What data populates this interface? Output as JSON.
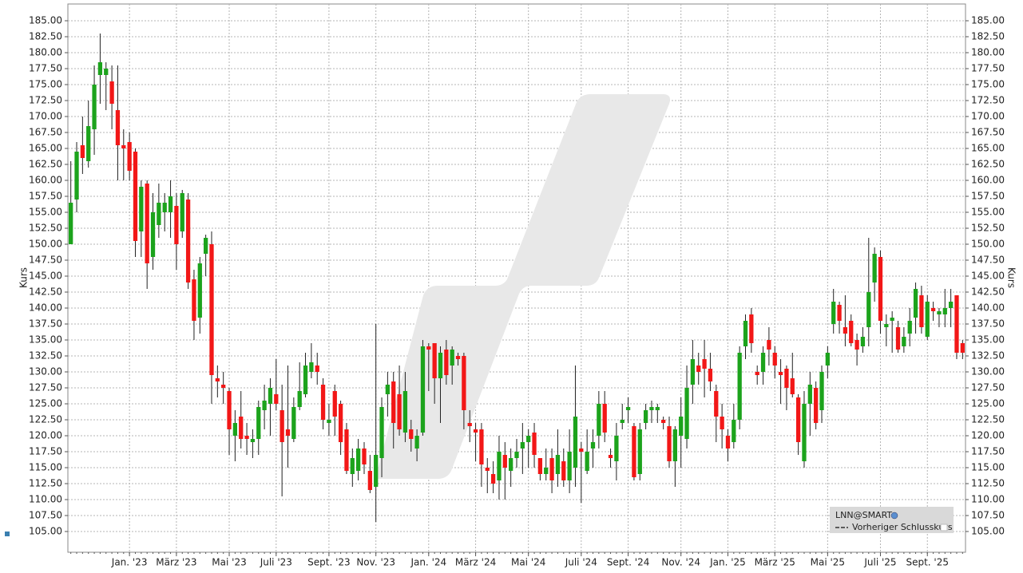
{
  "chart_data": {
    "type": "candlestick",
    "y_label": "Kurs",
    "legend": {
      "title": "LNN@SMART",
      "items": [
        "Vorheriger Schlusskurs"
      ]
    },
    "up_color": "#1ca31c",
    "down_color": "#f21717",
    "grid": true,
    "ylim": [
      101.75,
      187.625
    ],
    "yticks": [
      {
        "value": 105,
        "label": "105.00"
      },
      {
        "value": 107.5,
        "label": "107.50"
      },
      {
        "value": 110,
        "label": "110.00"
      },
      {
        "value": 112.5,
        "label": "112.50"
      },
      {
        "value": 115,
        "label": "115.00"
      },
      {
        "value": 117.5,
        "label": "117.50"
      },
      {
        "value": 120,
        "label": "120.00"
      },
      {
        "value": 122.5,
        "label": "122.50"
      },
      {
        "value": 125,
        "label": "125.00"
      },
      {
        "value": 127.5,
        "label": "127.50"
      },
      {
        "value": 130,
        "label": "130.00"
      },
      {
        "value": 132.5,
        "label": "132.50"
      },
      {
        "value": 135,
        "label": "135.00"
      },
      {
        "value": 137.5,
        "label": "137.50"
      },
      {
        "value": 140,
        "label": "140.00"
      },
      {
        "value": 142.5,
        "label": "142.50"
      },
      {
        "value": 145,
        "label": "145.00"
      },
      {
        "value": 147.5,
        "label": "147.50"
      },
      {
        "value": 150,
        "label": "150.00"
      },
      {
        "value": 152.5,
        "label": "152.50"
      },
      {
        "value": 155,
        "label": "155.00"
      },
      {
        "value": 157.5,
        "label": "157.50"
      },
      {
        "value": 160,
        "label": "160.00"
      },
      {
        "value": 162.5,
        "label": "162.50"
      },
      {
        "value": 165,
        "label": "165.00"
      },
      {
        "value": 167.5,
        "label": "167.50"
      },
      {
        "value": 170,
        "label": "170.00"
      },
      {
        "value": 172.5,
        "label": "172.50"
      },
      {
        "value": 175,
        "label": "175.00"
      },
      {
        "value": 177.5,
        "label": "177.50"
      },
      {
        "value": 180,
        "label": "180.00"
      },
      {
        "value": 182.5,
        "label": "182.50"
      },
      {
        "value": 185,
        "label": "185.00"
      }
    ],
    "categories": [
      null,
      null,
      null,
      null,
      null,
      null,
      null,
      null,
      null,
      null,
      "Jan. '23",
      null,
      null,
      null,
      null,
      null,
      null,
      null,
      "März '23",
      null,
      null,
      null,
      null,
      null,
      null,
      null,
      null,
      "Mai '23",
      null,
      null,
      null,
      null,
      null,
      null,
      null,
      "Juli '23",
      null,
      null,
      null,
      null,
      null,
      null,
      null,
      null,
      "Sept. '23",
      null,
      null,
      null,
      null,
      null,
      null,
      null,
      "Nov. '23",
      null,
      null,
      null,
      null,
      null,
      null,
      null,
      null,
      "Jan. '24",
      null,
      null,
      null,
      null,
      null,
      null,
      null,
      "März '24",
      null,
      null,
      null,
      null,
      null,
      null,
      null,
      null,
      "Mai '24",
      null,
      null,
      null,
      null,
      null,
      null,
      null,
      null,
      "Juli '24",
      null,
      null,
      null,
      null,
      null,
      null,
      null,
      "Sept. '24",
      null,
      null,
      null,
      null,
      null,
      null,
      null,
      null,
      "Nov. '24",
      null,
      null,
      null,
      null,
      null,
      null,
      null,
      "Jan. '25",
      null,
      null,
      null,
      null,
      null,
      null,
      null,
      "März '25",
      null,
      null,
      null,
      null,
      null,
      null,
      null,
      null,
      "Mai '25",
      null,
      null,
      null,
      null,
      null,
      null,
      null,
      null,
      "Juli '25",
      null,
      null,
      null,
      null,
      null,
      null,
      null,
      "Sept. '25",
      null,
      null,
      null,
      null,
      null,
      null
    ],
    "open": [
      150,
      157,
      165.5,
      163,
      168,
      176.5,
      176.5,
      175.5,
      171,
      165.5,
      166,
      164.5,
      152,
      159.5,
      148,
      153,
      155,
      155,
      156,
      152,
      157,
      144.5,
      138.5,
      148.5,
      150,
      129,
      128,
      127,
      120,
      123,
      120,
      119,
      119.5,
      124,
      125,
      126.5,
      124,
      121,
      119.5,
      124.5,
      126.5,
      130,
      131,
      128,
      122,
      127,
      125,
      121,
      114,
      114.5,
      118,
      114.5,
      112,
      116.5,
      126.5,
      128.5,
      126.5,
      120.5,
      121,
      118,
      120.5,
      134,
      134.5,
      129,
      133.5,
      131,
      132.5,
      132.5,
      122,
      121,
      121,
      115,
      114,
      113,
      117,
      114.5,
      116.5,
      118,
      119,
      120.5,
      116.5,
      114,
      116.5,
      114,
      116,
      113,
      115,
      118,
      114.5,
      118,
      120,
      125,
      117,
      116,
      122,
      124,
      121.5,
      114,
      122,
      124,
      124,
      122.5,
      121.5,
      116,
      120,
      119.5,
      128,
      131,
      132,
      130.5,
      127,
      123,
      120,
      119,
      122.5,
      134,
      139,
      130,
      130,
      135,
      133,
      130,
      130.5,
      129,
      126,
      116,
      125,
      127.5,
      124,
      131,
      137.5,
      140.5,
      137,
      138,
      135,
      134,
      137,
      144,
      148,
      137,
      138,
      137,
      134,
      136,
      138.5,
      142,
      135.5,
      140,
      139,
      139,
      140,
      142,
      134.5
    ],
    "high": [
      163,
      166,
      170,
      172.5,
      178,
      183,
      178.5,
      178,
      178,
      168,
      167.5,
      165,
      160,
      160,
      158,
      159.5,
      158,
      160,
      158,
      158.5,
      158,
      146,
      148,
      151.5,
      152,
      131,
      130,
      127.5,
      124,
      127,
      122,
      121,
      125.5,
      128,
      129,
      132,
      128,
      131,
      126,
      131.5,
      133,
      134.5,
      133,
      129,
      125,
      128,
      125.5,
      122,
      118,
      119.5,
      119,
      117,
      137.5,
      126,
      130,
      130,
      131,
      130,
      122.5,
      121,
      135,
      134.5,
      134.5,
      134,
      135,
      134,
      133,
      133,
      124,
      122,
      122,
      116.5,
      116,
      120,
      119,
      118,
      119.5,
      122,
      121,
      122,
      116.5,
      118,
      118,
      121,
      118,
      121,
      131,
      119,
      121,
      121,
      127,
      127,
      118,
      122,
      125,
      126,
      122,
      122,
      125,
      125.5,
      125,
      123,
      123,
      121.5,
      126,
      131,
      135,
      133,
      135,
      133,
      128,
      125,
      121,
      125,
      134,
      139,
      140,
      131,
      134,
      137,
      134,
      132,
      131,
      133,
      126.5,
      127,
      130,
      128.5,
      131,
      134,
      143,
      141,
      142,
      139,
      136,
      137,
      151,
      149.5,
      149,
      139,
      139.5,
      138,
      137,
      140,
      144,
      143.5,
      142,
      141,
      140,
      143,
      143,
      142,
      135
    ],
    "low": [
      150,
      155,
      161,
      162,
      164,
      172,
      171,
      168,
      160,
      160,
      160,
      148,
      148,
      143,
      146,
      151,
      152,
      151,
      146,
      151,
      143,
      135,
      136,
      145,
      125,
      126,
      125,
      117,
      116,
      118,
      117,
      116.5,
      117,
      121,
      120,
      124,
      110.5,
      115,
      119,
      124,
      126,
      129,
      128,
      121,
      120,
      120,
      117,
      114,
      112,
      113,
      114,
      111,
      106.5,
      113.5,
      123,
      118,
      120,
      119,
      117.5,
      116,
      120,
      127,
      125,
      122,
      128,
      128,
      131,
      121,
      119,
      116,
      112,
      111,
      111,
      110,
      110,
      112,
      115,
      114,
      115,
      115,
      113,
      113,
      111,
      112,
      112,
      111,
      112,
      109.5,
      114,
      115,
      118,
      119,
      115,
      113,
      121,
      122,
      113,
      113,
      121,
      122,
      122,
      121,
      115,
      112,
      115,
      118,
      125,
      128,
      126,
      127,
      119,
      118,
      116,
      118,
      121,
      132,
      133,
      128,
      128,
      131,
      129,
      125,
      124,
      126,
      117,
      115,
      120,
      121,
      122,
      129,
      136,
      136,
      134,
      134,
      131,
      133,
      134,
      141,
      136,
      134,
      133,
      133,
      133,
      134,
      136,
      136,
      135,
      138,
      137,
      137,
      137,
      132,
      132
    ],
    "close": [
      156.5,
      164.5,
      163.5,
      168.5,
      175,
      178.5,
      177.5,
      172,
      165.5,
      165,
      161.5,
      150.5,
      159,
      147,
      155,
      156.5,
      156.5,
      157.5,
      150,
      158,
      144,
      138,
      147,
      151,
      129.5,
      128.5,
      127.5,
      121,
      122,
      119.5,
      119.5,
      119.5,
      124.5,
      125.5,
      127.5,
      125,
      119,
      120,
      124.5,
      127,
      131,
      131.5,
      130,
      122.5,
      122.5,
      123,
      119,
      114.5,
      116.5,
      118,
      115.5,
      111.5,
      117,
      124.5,
      128,
      122,
      121,
      127,
      119.5,
      120,
      134,
      133.5,
      129,
      133,
      129.5,
      133.5,
      132,
      124,
      121.5,
      120.5,
      115.5,
      114.5,
      112.5,
      117.5,
      115,
      116.5,
      117.5,
      119,
      120,
      117,
      114,
      115,
      113,
      117,
      113,
      117.5,
      123,
      117.5,
      117.5,
      119,
      125,
      120.5,
      116.5,
      120,
      122.5,
      124.5,
      113.5,
      121,
      124,
      124.5,
      124.5,
      122,
      116,
      121,
      123,
      127.5,
      132,
      130,
      130.5,
      128.5,
      123,
      121,
      118,
      122.5,
      133,
      138,
      134.5,
      129.5,
      133,
      133.5,
      131,
      129.5,
      127.5,
      126.5,
      119,
      125,
      128,
      122,
      130,
      133,
      141,
      138,
      136,
      134.5,
      133.5,
      135.5,
      142.5,
      148.5,
      138,
      137.5,
      138.5,
      133.5,
      135.5,
      138,
      143,
      137,
      141,
      139.5,
      139.5,
      140,
      141,
      133,
      133
    ]
  }
}
